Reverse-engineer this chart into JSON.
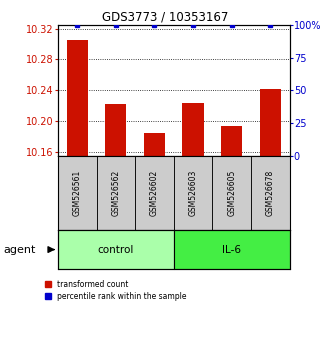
{
  "title": "GDS3773 / 10353167",
  "samples": [
    "GSM526561",
    "GSM526562",
    "GSM526602",
    "GSM526603",
    "GSM526605",
    "GSM526678"
  ],
  "red_values": [
    10.305,
    10.222,
    10.185,
    10.223,
    10.193,
    10.241
  ],
  "blue_values": [
    100,
    100,
    100,
    100,
    100,
    100
  ],
  "ylim_left": [
    10.155,
    10.325
  ],
  "ylim_right": [
    0,
    100
  ],
  "yticks_left": [
    10.16,
    10.2,
    10.24,
    10.28,
    10.32
  ],
  "yticks_right": [
    0,
    25,
    50,
    75,
    100
  ],
  "ytick_labels_left": [
    "10.16",
    "10.20",
    "10.24",
    "10.28",
    "10.32"
  ],
  "ytick_labels_right": [
    "0",
    "25",
    "50",
    "75",
    "100%"
  ],
  "groups": [
    {
      "label": "control",
      "indices": [
        0,
        1,
        2
      ],
      "color": "#aaffaa"
    },
    {
      "label": "IL-6",
      "indices": [
        3,
        4,
        5
      ],
      "color": "#44ee44"
    }
  ],
  "agent_label": "agent",
  "bar_color": "#cc1100",
  "dot_color": "#0000cc",
  "bar_width": 0.55,
  "sample_box_color": "#cccccc",
  "baseline": 10.155
}
